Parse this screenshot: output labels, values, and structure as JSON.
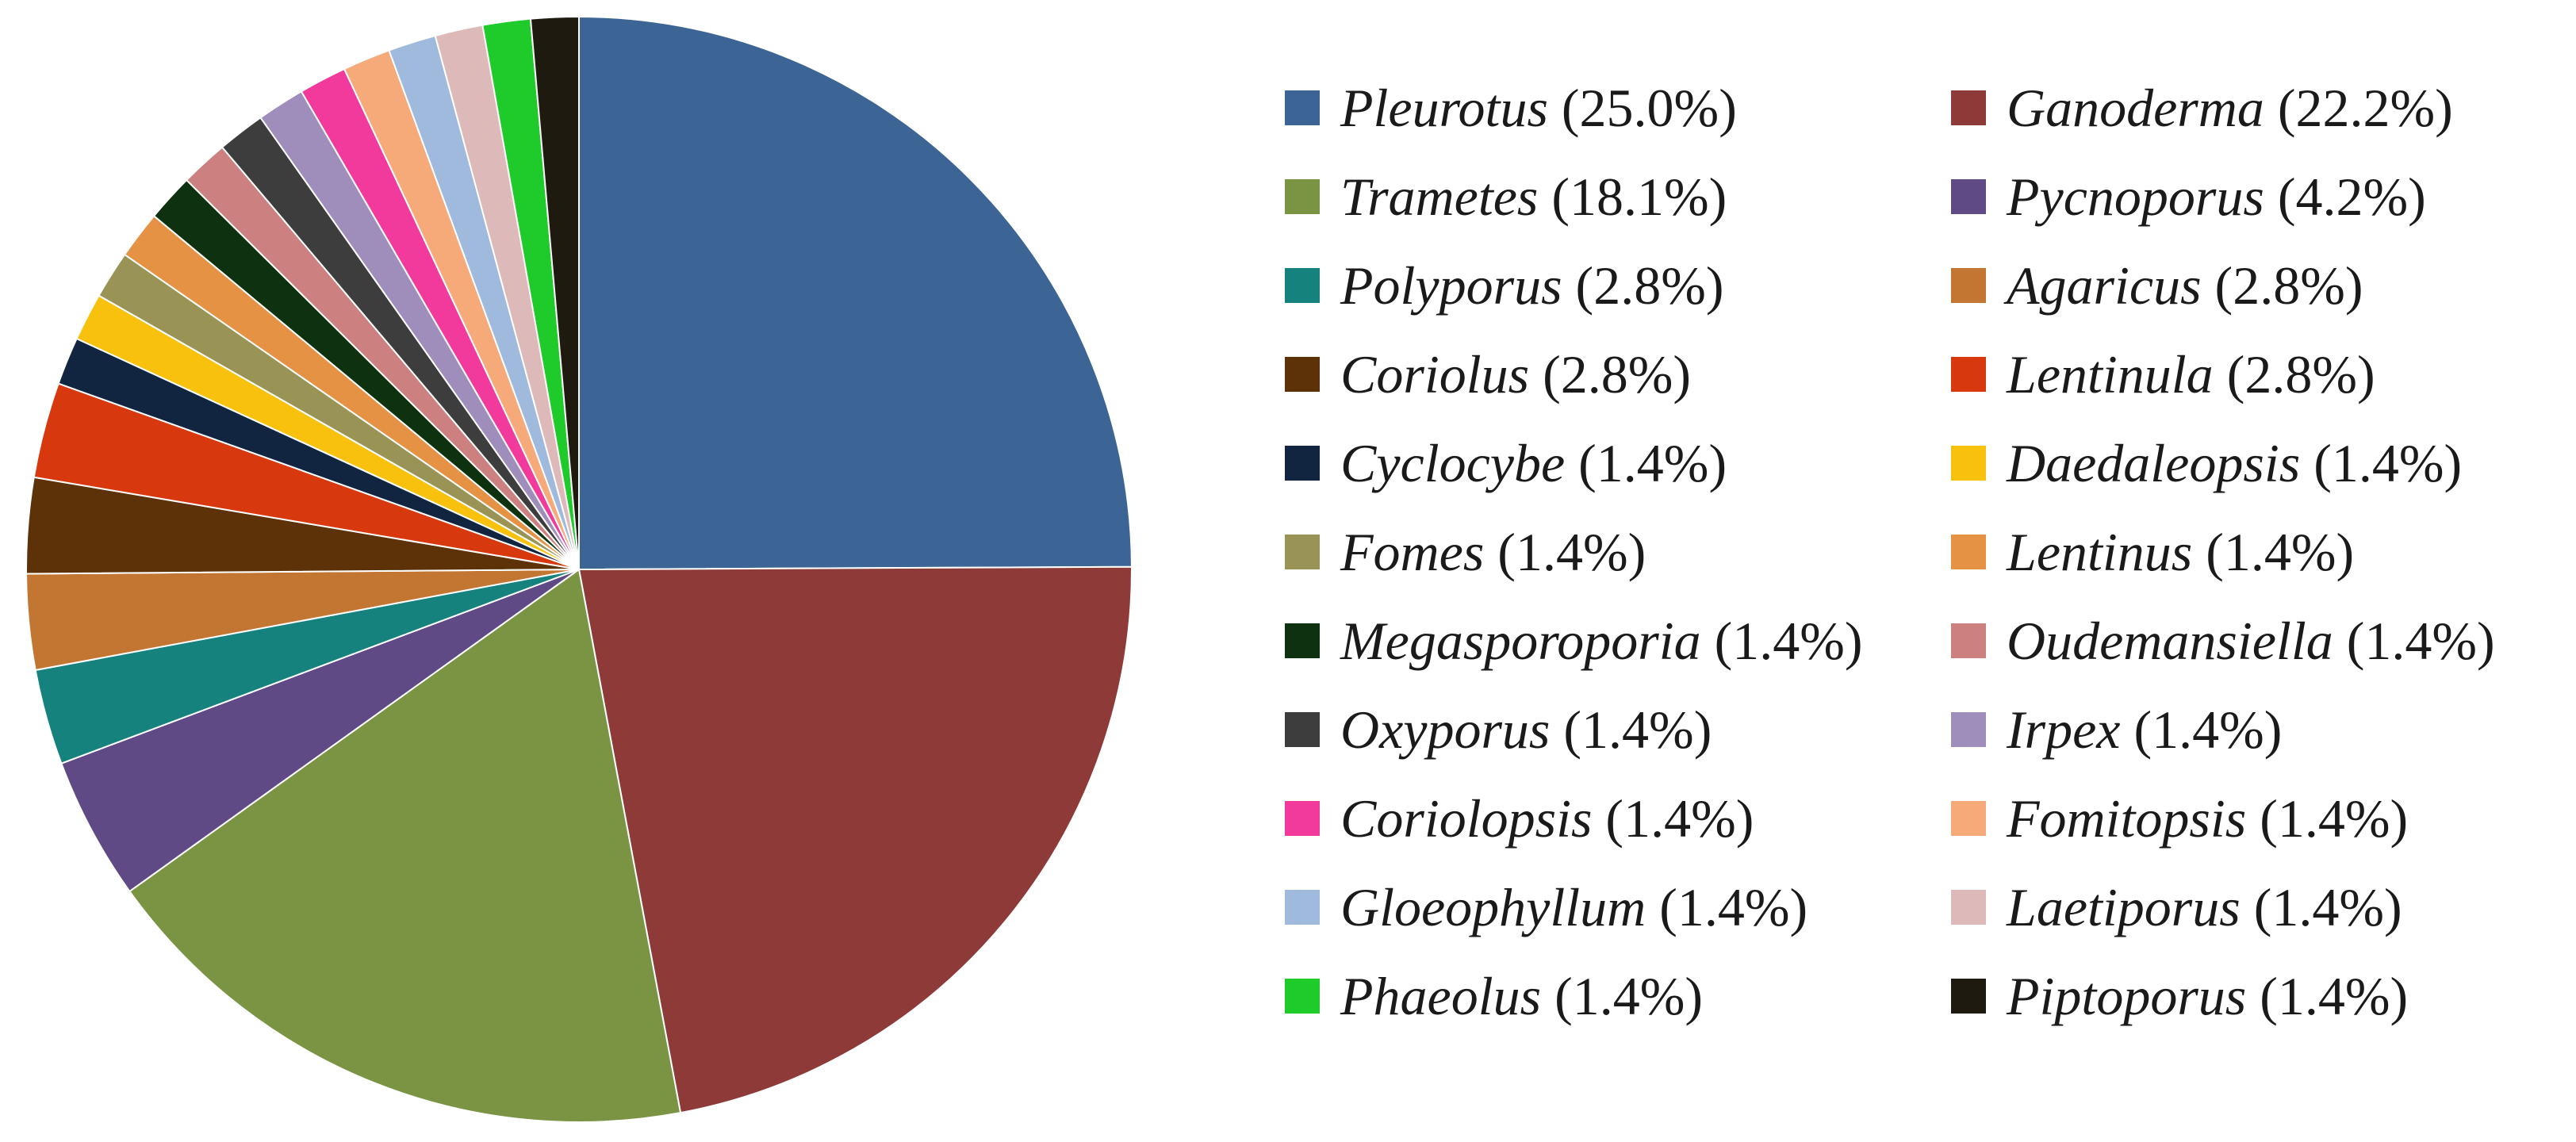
{
  "chart_data": {
    "type": "pie",
    "title": "",
    "start": "12 o'clock",
    "direction": "clockwise",
    "legend_placement": "right",
    "legend_columns": 2,
    "slices": [
      {
        "label": "Pleurotus",
        "value": 25.0,
        "pct_text": "(25.0%)",
        "color": "#3C6494"
      },
      {
        "label": "Ganoderma",
        "value": 22.2,
        "pct_text": "(22.2%)",
        "color": "#8E3A39"
      },
      {
        "label": "Trametes",
        "value": 18.1,
        "pct_text": "(18.1%)",
        "color": "#7A9444"
      },
      {
        "label": "Pycnoporus",
        "value": 4.2,
        "pct_text": "(4.2%)",
        "color": "#5F4A86"
      },
      {
        "label": "Polyporus",
        "value": 2.8,
        "pct_text": "(2.8%)",
        "color": "#15827E"
      },
      {
        "label": "Agaricus",
        "value": 2.8,
        "pct_text": "(2.8%)",
        "color": "#C27632"
      },
      {
        "label": "Coriolus",
        "value": 2.8,
        "pct_text": "(2.8%)",
        "color": "#5E3208"
      },
      {
        "label": "Lentinula",
        "value": 2.8,
        "pct_text": "(2.8%)",
        "color": "#D7380D"
      },
      {
        "label": "Cyclocybe",
        "value": 1.4,
        "pct_text": "(1.4%)",
        "color": "#112440"
      },
      {
        "label": "Daedaleopsis",
        "value": 1.4,
        "pct_text": "(1.4%)",
        "color": "#F7C10E"
      },
      {
        "label": "Fomes",
        "value": 1.4,
        "pct_text": "(1.4%)",
        "color": "#999355"
      },
      {
        "label": "Lentinus",
        "value": 1.4,
        "pct_text": "(1.4%)",
        "color": "#E69244"
      },
      {
        "label": "Megasporoporia",
        "value": 1.4,
        "pct_text": "(1.4%)",
        "color": "#0E3110"
      },
      {
        "label": "Oudemansiella",
        "value": 1.4,
        "pct_text": "(1.4%)",
        "color": "#CC8080"
      },
      {
        "label": "Oxyporus",
        "value": 1.4,
        "pct_text": "(1.4%)",
        "color": "#3D3D3D"
      },
      {
        "label": "Irpex",
        "value": 1.4,
        "pct_text": "(1.4%)",
        "color": "#9F8DBC"
      },
      {
        "label": "Coriolopsis",
        "value": 1.4,
        "pct_text": "(1.4%)",
        "color": "#F23A9C"
      },
      {
        "label": "Fomitopsis",
        "value": 1.4,
        "pct_text": "(1.4%)",
        "color": "#F6AA79"
      },
      {
        "label": "Gloeophyllum",
        "value": 1.4,
        "pct_text": "(1.4%)",
        "color": "#A0BADD"
      },
      {
        "label": "Laetiporus",
        "value": 1.4,
        "pct_text": "(1.4%)",
        "color": "#DDB9B9"
      },
      {
        "label": "Phaeolus",
        "value": 1.4,
        "pct_text": "(1.4%)",
        "color": "#1ECB2A"
      },
      {
        "label": "Piptoporus",
        "value": 1.4,
        "pct_text": "(1.4%)",
        "color": "#1E1A10"
      }
    ]
  }
}
